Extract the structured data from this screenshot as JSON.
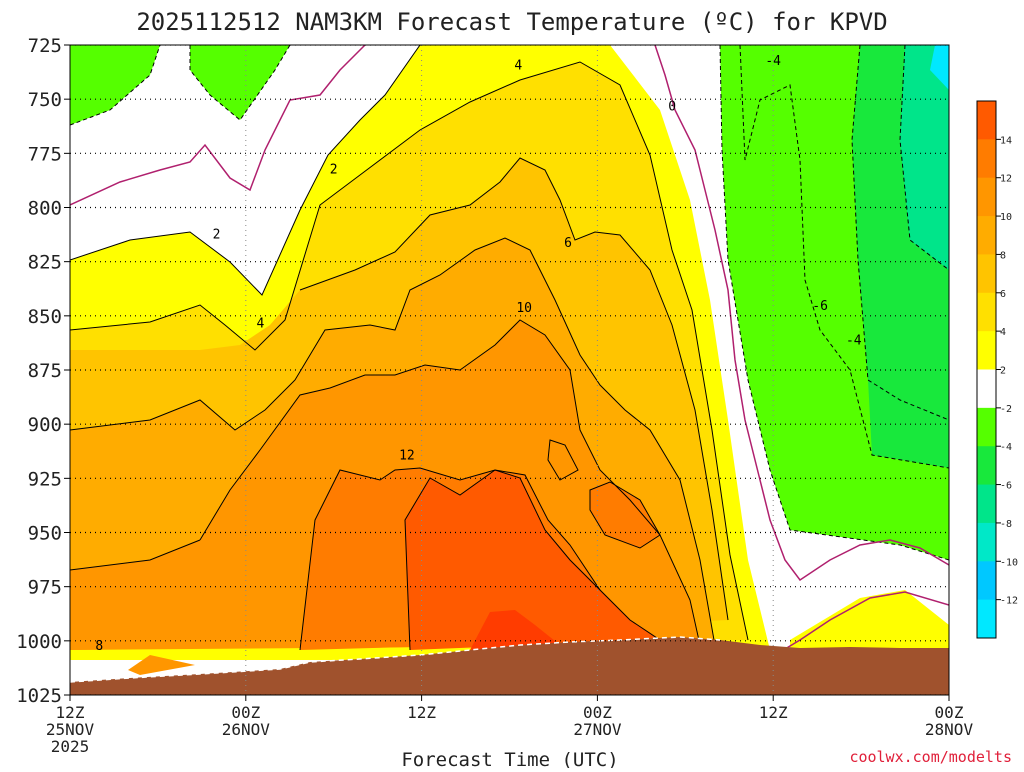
{
  "chart_data": {
    "type": "heatmap",
    "title": "2025112512 NAM3KM Forecast Temperature (ºC) for KPVD",
    "xlabel": "Forecast Time (UTC)",
    "ylabel": "",
    "credit": "coolwx.com/modelts",
    "y_ticks": [
      "725",
      "750",
      "775",
      "800",
      "825",
      "850",
      "875",
      "900",
      "925",
      "950",
      "975",
      "1000",
      "1025"
    ],
    "ylim": [
      1025,
      725
    ],
    "x_ticks": [
      {
        "hour": 0,
        "lines": [
          "12Z",
          "25NOV",
          "2025"
        ]
      },
      {
        "hour": 12,
        "lines": [
          "00Z",
          "26NOV"
        ]
      },
      {
        "hour": 24,
        "lines": [
          "12Z"
        ]
      },
      {
        "hour": 36,
        "lines": [
          "00Z",
          "27NOV"
        ]
      },
      {
        "hour": 48,
        "lines": [
          "12Z"
        ]
      },
      {
        "hour": 60,
        "lines": [
          "00Z",
          "28NOV"
        ]
      }
    ],
    "xlim": [
      0,
      60
    ],
    "colorbar": {
      "labels": [
        "14",
        "12",
        "10",
        "8",
        "6",
        "4",
        "2",
        "-2",
        "-4",
        "-6",
        "-8",
        "-10",
        "-12"
      ],
      "colors": [
        "#ff5a00",
        "#ff7c00",
        "#ff9600",
        "#ffac00",
        "#ffc400",
        "#ffe000",
        "#ffff00",
        "#ffffff",
        "#55ff00",
        "#18e83c",
        "#00e58a",
        "#00e8c8",
        "#00c8ff",
        "#00e8ff"
      ]
    },
    "contour_labels": [
      {
        "text": "4",
        "hour": 30.6,
        "pressure": 734
      },
      {
        "text": "0",
        "hour": 41.1,
        "pressure": 753
      },
      {
        "text": "-4",
        "hour": 48.0,
        "pressure": 732
      },
      {
        "text": "2",
        "hour": 18.0,
        "pressure": 782
      },
      {
        "text": "2",
        "hour": 10.0,
        "pressure": 812
      },
      {
        "text": "6",
        "hour": 34.0,
        "pressure": 816
      },
      {
        "text": "10",
        "hour": 31.0,
        "pressure": 846
      },
      {
        "text": "4",
        "hour": 13.0,
        "pressure": 853
      },
      {
        "text": "-6",
        "hour": 51.2,
        "pressure": 845
      },
      {
        "text": "-4",
        "hour": 53.5,
        "pressure": 861
      },
      {
        "text": "12",
        "hour": 23.0,
        "pressure": 914
      },
      {
        "text": "8",
        "hour": 2.0,
        "pressure": 1002
      }
    ]
  }
}
